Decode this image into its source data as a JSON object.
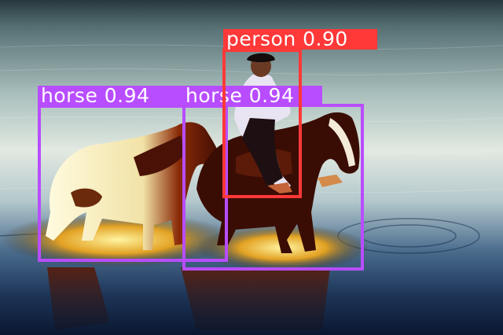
{
  "detections": [
    {
      "id": "horse-left",
      "label": "horse",
      "score": "0.94",
      "caption": "horse 0.94",
      "color": "#b84dff"
    },
    {
      "id": "horse-right",
      "label": "horse",
      "score": "0.94",
      "caption": "horse 0.94",
      "color": "#b84dff"
    },
    {
      "id": "person",
      "label": "person",
      "score": "0.90",
      "caption": "person 0.90",
      "color": "#ff3838"
    }
  ],
  "scene": {
    "sky_water_colors": [
      "#2c3d44",
      "#5f7d83",
      "#b2c7c5",
      "#dfe7df",
      "#9fb6c0",
      "#2d4d74",
      "#0c1a33"
    ],
    "subject": "rider on a dark brown horse leading a white-and-brown paint horse through shallow water"
  }
}
